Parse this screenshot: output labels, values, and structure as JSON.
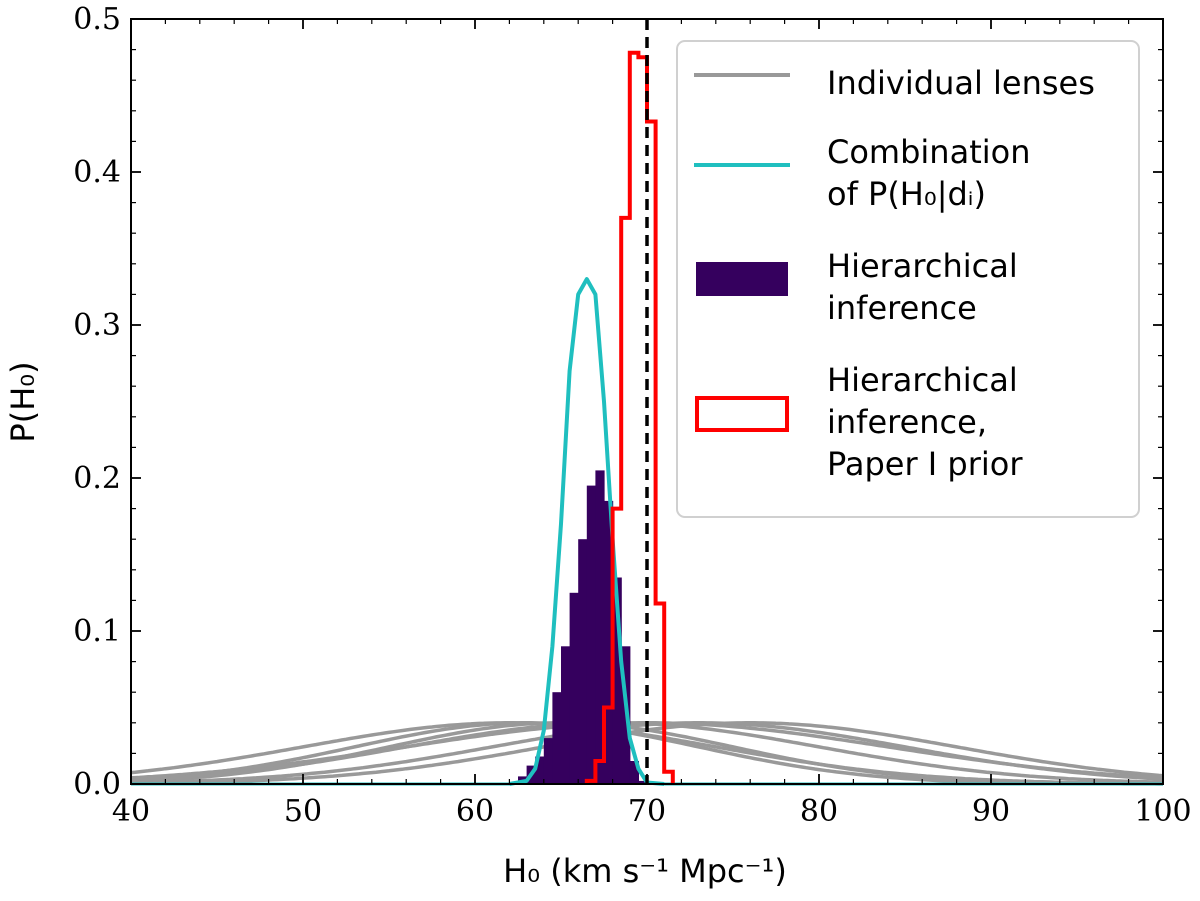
{
  "chart_data": {
    "type": "histogram+line",
    "title": "",
    "xlabel": "H₀ (km s⁻¹ Mpc⁻¹)",
    "ylabel": "P(H₀)",
    "xlim": [
      40,
      100
    ],
    "ylim": [
      0,
      0.5
    ],
    "x_ticks": [
      "40",
      "50",
      "60",
      "70",
      "80",
      "90",
      "100"
    ],
    "y_ticks": [
      "0.0",
      "0.1",
      "0.2",
      "0.3",
      "0.4",
      "0.5"
    ],
    "reference_line": {
      "x": 70,
      "style": "dashed",
      "color": "#000000"
    },
    "colors": {
      "individual": "#999999",
      "combination": "#1fbfbf",
      "hierarchical": "#35005e",
      "paper1": "#ff0000"
    },
    "individual_lenses": [
      {
        "mu": 63,
        "sigma": 10
      },
      {
        "mu": 65,
        "sigma": 10
      },
      {
        "mu": 62,
        "sigma": 12
      },
      {
        "mu": 73,
        "sigma": 12
      },
      {
        "mu": 76,
        "sigma": 12
      },
      {
        "mu": 70,
        "sigma": 14
      },
      {
        "mu": 68,
        "sigma": 12
      }
    ],
    "combination": {
      "x": [
        62.0,
        63.0,
        63.5,
        64.0,
        64.5,
        65.0,
        65.5,
        66.0,
        66.5,
        67.0,
        67.5,
        68.0,
        68.5,
        69.0,
        69.5,
        70.0,
        71.0
      ],
      "y": [
        0.0,
        0.002,
        0.01,
        0.035,
        0.09,
        0.17,
        0.27,
        0.32,
        0.33,
        0.32,
        0.25,
        0.16,
        0.08,
        0.03,
        0.01,
        0.001,
        0.0
      ]
    },
    "hierarchical": {
      "bin_edges": [
        62.5,
        63.0,
        63.5,
        64.0,
        64.5,
        65.0,
        65.5,
        66.0,
        66.5,
        67.0,
        67.5,
        68.0,
        68.5,
        69.0,
        69.5,
        70.0
      ],
      "values": [
        0.005,
        0.012,
        0.018,
        0.03,
        0.06,
        0.09,
        0.125,
        0.16,
        0.195,
        0.205,
        0.185,
        0.135,
        0.09,
        0.015,
        0.002
      ]
    },
    "paper1_prior": {
      "bin_edges": [
        66.5,
        67.0,
        67.5,
        68.0,
        68.5,
        69.0,
        69.5,
        70.0,
        70.5,
        71.0,
        71.5
      ],
      "values": [
        0.002,
        0.015,
        0.05,
        0.18,
        0.37,
        0.478,
        0.475,
        0.433,
        0.118,
        0.008
      ]
    },
    "legend": {
      "placement": "top-right",
      "entries": [
        {
          "lines": [
            "Individual lenses"
          ],
          "style": "line",
          "color": "#999999"
        },
        {
          "lines": [
            "Combination",
            "of P(H₀|dᵢ)"
          ],
          "style": "line",
          "color": "#1fbfbf"
        },
        {
          "lines": [
            "Hierarchical",
            "inference"
          ],
          "style": "filled",
          "color": "#35005e"
        },
        {
          "lines": [
            "Hierarchical",
            "inference,",
            "Paper I prior"
          ],
          "style": "outline",
          "color": "#ff0000"
        }
      ]
    }
  }
}
